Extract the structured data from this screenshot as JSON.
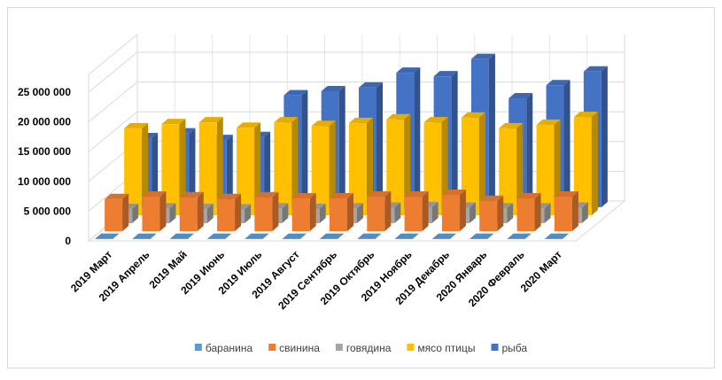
{
  "chart_data": {
    "type": "bar3d",
    "categories": [
      "2019 Март",
      "2019 Апрель",
      "2019 Май",
      "2019 Июнь",
      "2019 Июль",
      "2019 Август",
      "2019 Сентябрь",
      "2019 Октябрь",
      "2019 Ноябрь",
      "2019 Декабрь",
      "2020 Январь",
      "2020 Февраль",
      "2020 Март"
    ],
    "series": [
      {
        "name": "баранина",
        "color": "#5b9bd5",
        "values": [
          50000,
          50000,
          50000,
          50000,
          50000,
          50000,
          50000,
          50000,
          50000,
          50000,
          50000,
          50000,
          50000
        ]
      },
      {
        "name": "свинина",
        "color": "#ed7d31",
        "values": [
          5400000,
          5800000,
          5700000,
          5400000,
          5700000,
          5500000,
          5500000,
          5800000,
          5800000,
          6100000,
          5100000,
          5500000,
          5800000
        ]
      },
      {
        "name": "говядина",
        "color": "#a5a5a5",
        "values": [
          2400000,
          2500000,
          2400000,
          2300000,
          2500000,
          2400000,
          2500000,
          2600000,
          2700000,
          2600000,
          2500000,
          2500000,
          2600000
        ]
      },
      {
        "name": "мясо птицы",
        "color": "#ffc000",
        "values": [
          14600000,
          15300000,
          15600000,
          14700000,
          15600000,
          15000000,
          15500000,
          16100000,
          15600000,
          16400000,
          14600000,
          15200000,
          16500000
        ]
      },
      {
        "name": "рыба",
        "color": "#4472c4",
        "values": [
          11600000,
          12400000,
          11300000,
          11800000,
          18800000,
          19500000,
          20100000,
          22600000,
          22000000,
          24900000,
          18300000,
          20500000,
          22800000
        ]
      }
    ],
    "ylim": [
      0,
      25000000
    ],
    "yticks": [
      {
        "value": 0,
        "label": "0"
      },
      {
        "value": 5000000,
        "label": "5 000 000"
      },
      {
        "value": 10000000,
        "label": "10 000 000"
      },
      {
        "value": 15000000,
        "label": "15 000 000"
      },
      {
        "value": 20000000,
        "label": "20 000 000"
      },
      {
        "value": 25000000,
        "label": "25 000 000"
      }
    ],
    "grid": true,
    "legend": "bottom"
  }
}
